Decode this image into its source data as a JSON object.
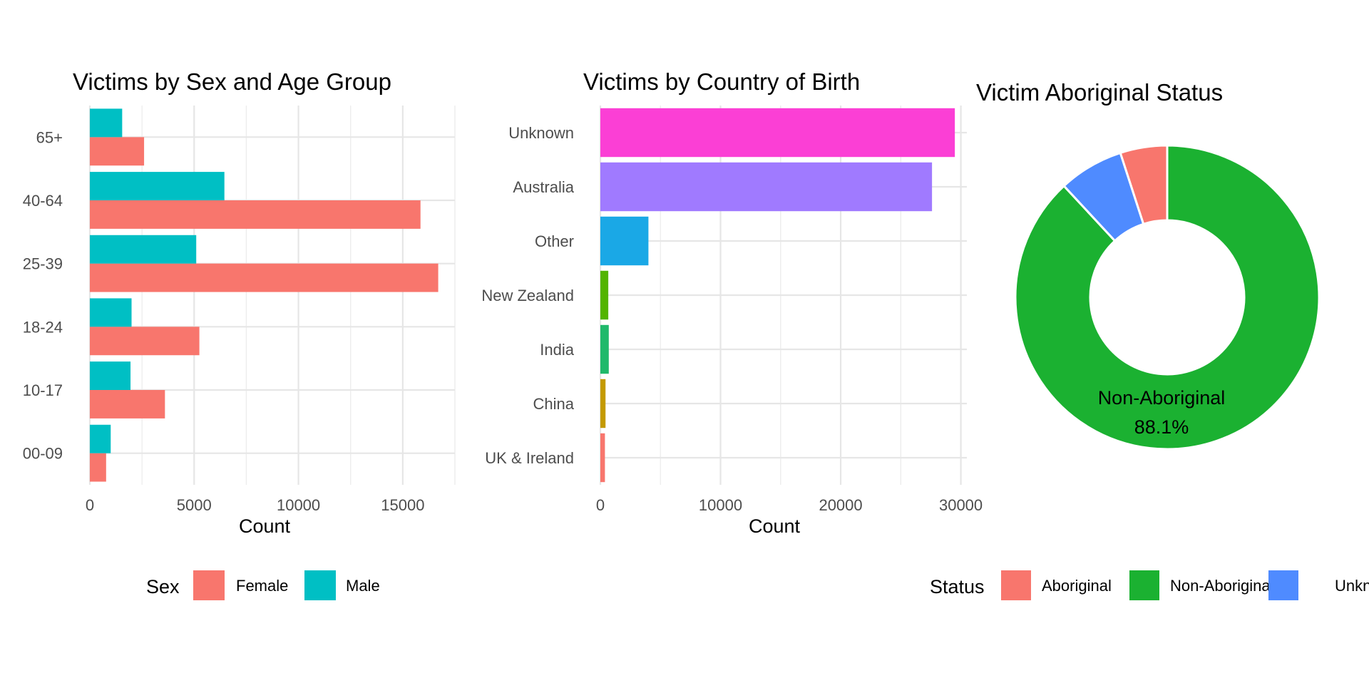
{
  "chart_data": [
    {
      "type": "bar",
      "orientation": "horizontal",
      "title": "Victims by Sex and Age Group",
      "xlabel": "Count",
      "ylabel": "",
      "categories": [
        "00-09",
        "10-17",
        "18-24",
        "25-39",
        "40-64",
        "65+"
      ],
      "series": [
        {
          "name": "Female",
          "color": "#F8766D",
          "values": [
            780,
            3600,
            5250,
            16700,
            15850,
            2600
          ]
        },
        {
          "name": "Male",
          "color": "#00BFC4",
          "values": [
            1000,
            1950,
            2000,
            5100,
            6450,
            1550
          ]
        }
      ],
      "xlim": [
        0,
        17500
      ],
      "xticks": [
        0,
        5000,
        10000,
        15000
      ],
      "xtick_labels": [
        "0",
        "5000",
        "10000",
        "15000"
      ],
      "grid": true,
      "legend": {
        "title": "Sex",
        "position": "bottom",
        "items": [
          "Female",
          "Male"
        ]
      }
    },
    {
      "type": "bar",
      "orientation": "horizontal",
      "title": "Victims by Country of Birth",
      "xlabel": "Count",
      "ylabel": "",
      "categories": [
        "UK & Ireland",
        "China",
        "India",
        "New Zealand",
        "Other",
        "Australia",
        "Unknown"
      ],
      "values": [
        380,
        430,
        700,
        660,
        4000,
        27600,
        29500
      ],
      "colors": [
        "#F8766D",
        "#C49A00",
        "#20B96B",
        "#53B400",
        "#1AA8E6",
        "#A07AFF",
        "#FB3FD5"
      ],
      "xlim": [
        0,
        30500
      ],
      "xticks": [
        0,
        10000,
        20000,
        30000
      ],
      "xtick_labels": [
        "0",
        "10000",
        "20000",
        "30000"
      ],
      "grid": true
    },
    {
      "type": "pie",
      "donut": true,
      "title": "Victim Aboriginal Status",
      "slices": [
        {
          "label": "Aboriginal",
          "value": 5.0,
          "color": "#F8766D"
        },
        {
          "label": "Non-Aboriginal",
          "value": 88.1,
          "color": "#1BB131"
        },
        {
          "label": "Unknown",
          "value": 6.9,
          "color": "#4F8BFF"
        }
      ],
      "annotation": {
        "label": "Non-Aboriginal",
        "percent": "88.1%"
      },
      "legend": {
        "title": "Status",
        "position": "bottom",
        "items": [
          "Aboriginal",
          "Non-Aboriginal",
          "Unknown"
        ]
      }
    }
  ]
}
